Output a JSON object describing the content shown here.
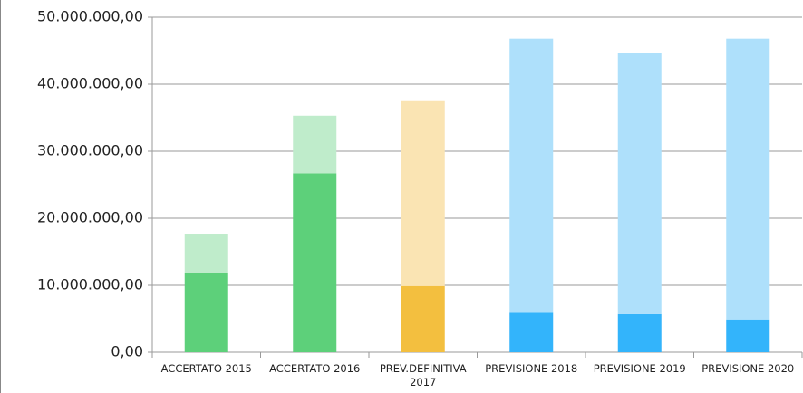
{
  "chart_data": {
    "type": "stacked_bar",
    "categories": [
      "ACCERTATO 2015",
      "ACCERTATO 2016",
      "PREV.DEFINITIVA 2017",
      "PREVISIONE 2018",
      "PREVISIONE 2019",
      "PREVISIONE 2020"
    ],
    "series": [
      {
        "values": [
          11800000,
          26700000,
          9900000,
          5900000,
          5700000,
          4900000
        ],
        "colors": [
          "#5dd07a",
          "#5dd07a",
          "#f3bf3f",
          "#33b4fb",
          "#33b4fb",
          "#33b4fb"
        ]
      },
      {
        "values": [
          5900000,
          8600000,
          27700000,
          40900000,
          39000000,
          41900000
        ],
        "colors": [
          "#bfeccb",
          "#bfeccb",
          "#fae4b3",
          "#aee0fb",
          "#aee0fb",
          "#aee0fb"
        ]
      }
    ],
    "ylim": [
      0,
      50000000
    ],
    "yticks": [
      {
        "value": 0,
        "label": "0,00"
      },
      {
        "value": 10000000,
        "label": "10.000.000,00"
      },
      {
        "value": 20000000,
        "label": "20.000.000,00"
      },
      {
        "value": 30000000,
        "label": "30.000.000,00"
      },
      {
        "value": 40000000,
        "label": "40.000.000,00"
      },
      {
        "value": 50000000,
        "label": "50.000.000,00"
      }
    ],
    "grid": true
  }
}
